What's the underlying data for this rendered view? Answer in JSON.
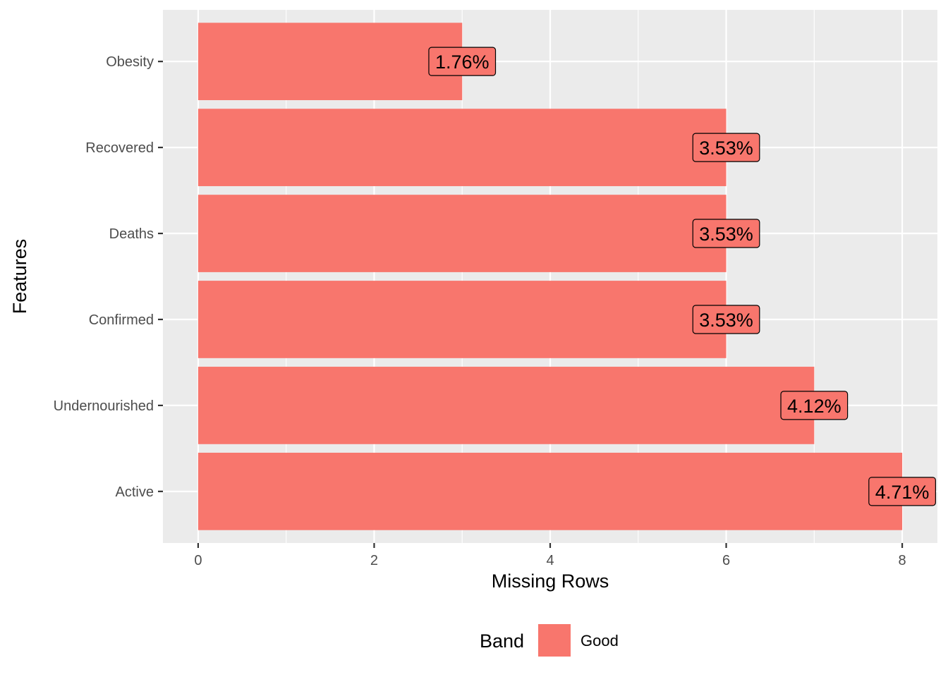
{
  "chart_data": {
    "type": "bar",
    "orientation": "horizontal",
    "categories": [
      "Obesity",
      "Recovered",
      "Deaths",
      "Confirmed",
      "Undernourished",
      "Active"
    ],
    "series": [
      {
        "name": "Good",
        "values": [
          3,
          6,
          6,
          6,
          7,
          8
        ],
        "labels": [
          "1.76%",
          "3.53%",
          "3.53%",
          "3.53%",
          "4.12%",
          "4.71%"
        ]
      }
    ],
    "xlabel": "Missing Rows",
    "ylabel": "Features",
    "xlim": [
      -0.4,
      8.4
    ],
    "x_ticks": [
      0,
      2,
      4,
      6,
      8
    ],
    "x_tick_labels": [
      "0",
      "2",
      "4",
      "6",
      "8"
    ],
    "grid": true,
    "legend": {
      "title": "Band",
      "position": "bottom",
      "entries": [
        {
          "label": "Good",
          "color": "#F8766D"
        }
      ]
    },
    "colors": {
      "bar": "#F8766D",
      "panel": "#EBEBEB",
      "grid": "#FFFFFF"
    }
  }
}
